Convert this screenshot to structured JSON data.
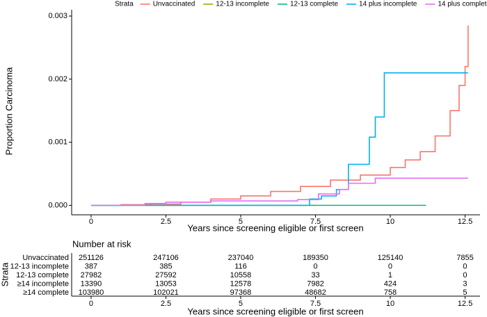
{
  "chart_data": {
    "type": "step",
    "ylabel": "Proportion Carcinoma",
    "xlabel": "Years since screening eligible or first screen",
    "legend_title": "Strata",
    "legend_position": "top",
    "xlim": [
      -0.65,
      13.0
    ],
    "ylim": [
      -0.00015,
      0.0031
    ],
    "xticks": [
      0,
      2.5,
      5,
      7.5,
      10,
      12.5
    ],
    "yticks": [
      {
        "value": 0,
        "label": "0.000"
      },
      {
        "value": 0.001,
        "label": "0.001"
      },
      {
        "value": 0.002,
        "label": "0.002"
      },
      {
        "value": 0.003,
        "label": "0.003"
      }
    ],
    "series": [
      {
        "name": "Unvaccinated",
        "color": "#F8766D",
        "x": [
          0,
          1,
          2,
          3,
          4,
          5,
          6,
          7,
          8,
          9,
          10,
          10.5,
          11,
          11.5,
          12,
          12.3,
          12.5,
          12.6
        ],
        "values": [
          0,
          1e-05,
          2e-05,
          5e-05,
          0.0001,
          0.00015,
          0.00022,
          0.0003,
          0.0004,
          0.00048,
          0.0006,
          0.00072,
          0.00085,
          0.0011,
          0.0015,
          0.0019,
          0.0022,
          0.00285
        ]
      },
      {
        "name": "12-13 incomplete",
        "color": "#A3A500",
        "x": [
          0,
          7.5
        ],
        "values": [
          0,
          0
        ]
      },
      {
        "name": "12-13 complete",
        "color": "#00BF7D",
        "x": [
          0,
          11.2
        ],
        "values": [
          0,
          0
        ]
      },
      {
        "name": "14 plus incomplete",
        "color": "#00B0F6",
        "x": [
          0,
          7.3,
          7.7,
          8.2,
          8.6,
          9.3,
          9.5,
          9.8,
          12.6
        ],
        "values": [
          0,
          0.0001,
          0.00015,
          0.00025,
          0.00065,
          0.00108,
          0.0014,
          0.0021,
          0.0021
        ]
      },
      {
        "name": "14 plus complete",
        "color": "#E76BF3",
        "x": [
          0,
          1.8,
          2.5,
          4,
          6.9,
          7.6,
          8.3,
          8.6,
          9.5,
          12.6
        ],
        "values": [
          0,
          3e-05,
          5e-05,
          7e-05,
          9e-05,
          0.00018,
          0.00025,
          0.00035,
          0.00043,
          0.00043
        ]
      }
    ]
  },
  "risk_table": {
    "title": "Number at risk",
    "ylabel": "Strata",
    "xlabel": "Years since screening eligible or first screen",
    "xlim": [
      -0.65,
      13.0
    ],
    "xticks": [
      0,
      2.5,
      5,
      7.5,
      10,
      12.5
    ],
    "rows": [
      {
        "name": "Unvaccinated",
        "color": "#F8766D",
        "values": [
          251126,
          247106,
          237040,
          189350,
          125140,
          7855
        ]
      },
      {
        "name": "12-13 incomplete",
        "color": "#A3A500",
        "values": [
          387,
          385,
          116,
          0,
          0,
          0
        ]
      },
      {
        "name": "12-13 complete",
        "color": "#00BF7D",
        "values": [
          27982,
          27592,
          10558,
          33,
          1,
          0
        ]
      },
      {
        "name": "≥14 incomplete",
        "color": "#00B0F6",
        "values": [
          13390,
          13053,
          12578,
          7982,
          424,
          3
        ]
      },
      {
        "name": "≥14 complete",
        "color": "#E76BF3",
        "values": [
          103980,
          102021,
          97368,
          48682,
          758,
          5
        ]
      }
    ]
  }
}
